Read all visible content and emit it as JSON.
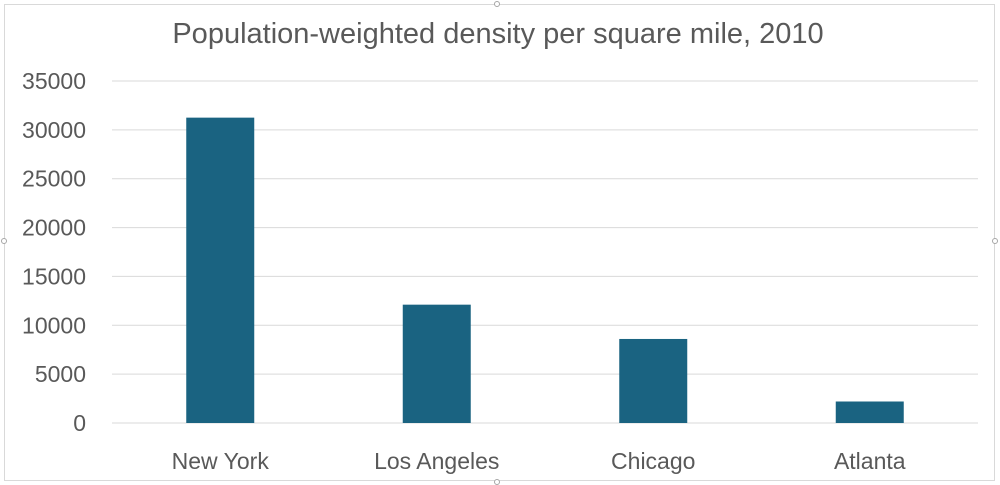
{
  "chart_data": {
    "type": "bar",
    "title": "Population-weighted density per square mile, 2010",
    "categories": [
      "New York",
      "Los Angeles",
      "Chicago",
      "Atlanta"
    ],
    "values": [
      31250,
      12110,
      8600,
      2200
    ],
    "ylim": [
      0,
      35000
    ],
    "yticks": [
      "0",
      "5000",
      "10000",
      "15000",
      "20000",
      "25000",
      "30000",
      "35000"
    ],
    "xlabel": "",
    "ylabel": "",
    "grid": true,
    "legend": "none"
  },
  "colors": {
    "bar": "#1a6381",
    "grid": "#d9d9d9",
    "text": "#595959",
    "title": "#595959"
  }
}
